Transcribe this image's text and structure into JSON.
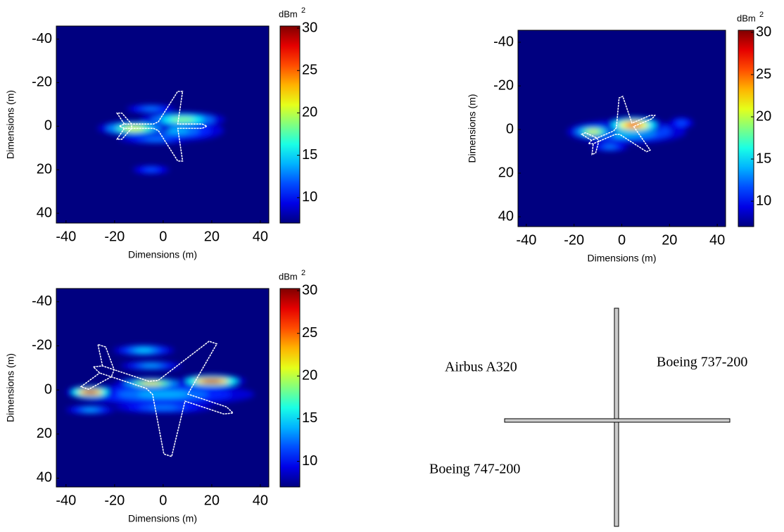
{
  "chart_data": [
    {
      "type": "heatmap",
      "xlabel": "Dimensions (m)",
      "ylabel": "Dimensions (m)",
      "xlim": [
        -44,
        43.5
      ],
      "ylim": [
        -46,
        44.5
      ],
      "y_reversed": true,
      "xticks": [
        -40,
        -20,
        0,
        20,
        40
      ],
      "yticks": [
        -40,
        -20,
        0,
        20,
        40
      ],
      "colorbar_label": "dBm",
      "colorbar_label_sup": "2",
      "clim": [
        7,
        30.25
      ],
      "cticks": [
        10,
        15,
        20,
        25,
        30
      ],
      "blobs": [
        {
          "x": 5,
          "y": 2,
          "w": 40,
          "h": 10,
          "value": 14
        },
        {
          "x": -3,
          "y": 6,
          "w": 30,
          "h": 4,
          "value": 13
        },
        {
          "x": -5,
          "y": -8,
          "w": 20,
          "h": 4,
          "value": 13
        },
        {
          "x": -5,
          "y": 20,
          "w": 15,
          "h": 4,
          "value": 12
        },
        {
          "x": 8,
          "y": -3,
          "w": 35,
          "h": 7,
          "value": 19
        },
        {
          "x": -12,
          "y": 1,
          "w": 30,
          "h": 7,
          "value": 21
        }
      ]
    },
    {
      "type": "heatmap",
      "xlabel": "Dimensions (m)",
      "ylabel": "Dimensions (m)",
      "xlim": [
        -43.5,
        43.5
      ],
      "ylim": [
        -45.5,
        44.5
      ],
      "y_reversed": true,
      "xticks": [
        -40,
        -20,
        0,
        20,
        40
      ],
      "yticks": [
        -40,
        -20,
        0,
        20,
        40
      ],
      "colorbar_label": "dBm",
      "colorbar_label_sup": "2",
      "clim": [
        7,
        30.25
      ],
      "cticks": [
        10,
        15,
        20,
        25,
        30
      ],
      "blobs": [
        {
          "x": 2,
          "y": 1,
          "w": 50,
          "h": 11,
          "value": 16
        },
        {
          "x": -5,
          "y": 8,
          "w": 15,
          "h": 4,
          "value": 13
        },
        {
          "x": 25,
          "y": -3,
          "w": 10,
          "h": 5,
          "value": 12
        },
        {
          "x": -12,
          "y": 1,
          "w": 20,
          "h": 6,
          "value": 21
        },
        {
          "x": 5,
          "y": -2,
          "w": 25,
          "h": 8,
          "value": 27
        }
      ]
    },
    {
      "type": "heatmap",
      "xlabel": "Dimensions (m)",
      "ylabel": "Dimensions (m)",
      "xlim": [
        -44,
        43.5
      ],
      "ylim": [
        -46,
        44
      ],
      "y_reversed": true,
      "xticks": [
        -40,
        -20,
        0,
        20,
        40
      ],
      "yticks": [
        -40,
        -20,
        0,
        20,
        40
      ],
      "colorbar_label": "dBm",
      "colorbar_label_sup": "2",
      "clim": [
        7,
        30.25
      ],
      "cticks": [
        10,
        15,
        20,
        25,
        30
      ],
      "blobs": [
        {
          "x": 0,
          "y": 2,
          "w": 75,
          "h": 10,
          "value": 14
        },
        {
          "x": 0,
          "y": 8,
          "w": 40,
          "h": 5,
          "value": 13
        },
        {
          "x": -30,
          "y": 9,
          "w": 20,
          "h": 4,
          "value": 14
        },
        {
          "x": -5,
          "y": -11,
          "w": 25,
          "h": 4,
          "value": 14
        },
        {
          "x": -8,
          "y": -18,
          "w": 25,
          "h": 5,
          "value": 15
        },
        {
          "x": -5,
          "y": -3,
          "w": 30,
          "h": 5,
          "value": 22
        },
        {
          "x": -30,
          "y": 1,
          "w": 20,
          "h": 6,
          "value": 29
        },
        {
          "x": 20,
          "y": -4,
          "w": 28,
          "h": 6,
          "value": 29
        }
      ]
    }
  ],
  "diagram": {
    "labels": [
      "Airbus A320",
      "Boeing 737-200",
      "Boeing 747-200"
    ]
  }
}
